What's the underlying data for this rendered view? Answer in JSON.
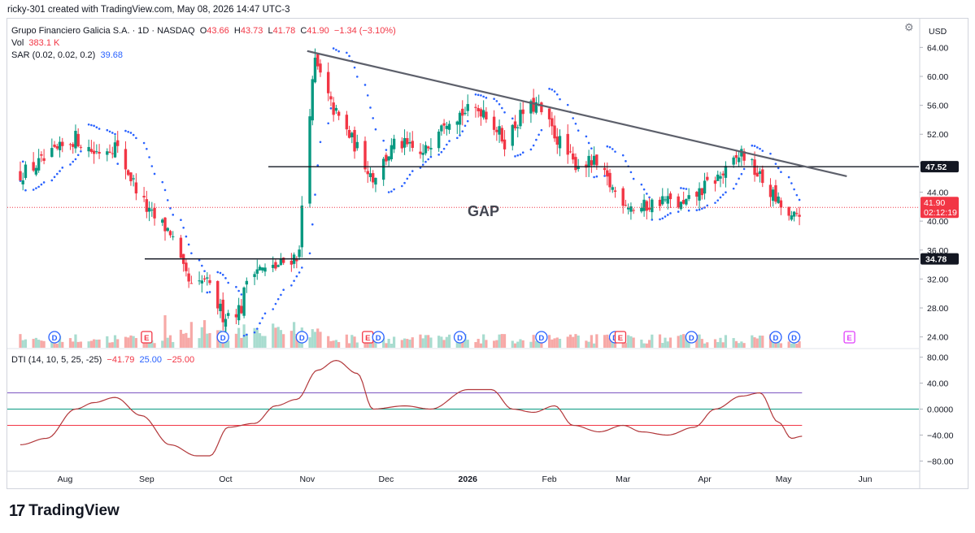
{
  "header": {
    "created_by": "ricky-301 created with TradingView.com, May 08, 2026 14:47 UTC-3"
  },
  "legend": {
    "symbol": "Grupo Financiero Galicia S.A. · 1D · NASDAQ",
    "o_label": "O",
    "o": "43.66",
    "h_label": "H",
    "h": "43.73",
    "l_label": "L",
    "l": "41.78",
    "c_label": "C",
    "c": "41.90",
    "change": "−1.34 (−3.10%)",
    "vol_label": "Vol",
    "vol": "383.1 K",
    "sar_label": "SAR (0.02, 0.02, 0.2)",
    "sar": "39.68",
    "dti_label": "DTI (14, 10, 5, 25, -25)",
    "dti": "−41.79",
    "dti_upper": "25.00",
    "dti_lower": "−25.00"
  },
  "branding": {
    "logo_word": "TradingView"
  },
  "colors": {
    "up": "#089981",
    "down": "#f23645",
    "sar": "#2962ff",
    "trendline": "#5d606b",
    "dti_line": "#b2383b",
    "dti_upper": "#7e57c2",
    "dti_lower": "#f23645",
    "dti_zero": "#089981"
  },
  "chart_data": [
    {
      "type": "candlestick",
      "title": "Grupo Financiero Galicia S.A. · 1D · NASDAQ",
      "currency": "USD",
      "x_ticks": [
        "Aug",
        "Sep",
        "Oct",
        "Nov",
        "Dec",
        "2026",
        "Feb",
        "Mar",
        "Apr",
        "May",
        "Jun"
      ],
      "y_ticks": [
        "24.00",
        "28.00",
        "32.00",
        "36.00",
        "40.00",
        "44.00",
        "48.00",
        "52.00",
        "56.00",
        "60.00",
        "64.00"
      ],
      "ylim": [
        22.5,
        65.5
      ],
      "close_anchors": {
        "dates": [
          "Jul 15",
          "Jul 25",
          "Aug 5",
          "Aug 12",
          "Aug 20",
          "Aug 26",
          "Sep 2",
          "Sep 10",
          "Sep 15",
          "Sep 19",
          "Sep 23",
          "Sep 30",
          "Oct 7",
          "Oct 10",
          "Oct 17",
          "Oct 24",
          "Oct 29",
          "Oct 31",
          "Nov 4",
          "Nov 10",
          "Nov 20",
          "Nov 26",
          "Dec 5",
          "Dec 15",
          "Dec 22",
          "Dec 30",
          "Jan 7",
          "Jan 15",
          "Jan 22",
          "Jan 27",
          "Feb 3",
          "Feb 10",
          "Feb 18",
          "Feb 26",
          "Mar 6",
          "Mar 16",
          "Mar 24",
          "Apr 2",
          "Apr 10",
          "Apr 15",
          "Apr 22",
          "Apr 28",
          "May 4",
          "May 8"
        ],
        "values": [
          46.5,
          48.5,
          51.5,
          49.5,
          50.5,
          46,
          41,
          38.5,
          33,
          30,
          32,
          27,
          28,
          34,
          33,
          34.5,
          35.5,
          49,
          62,
          56,
          50,
          46,
          51,
          49,
          54,
          55,
          55.5,
          51,
          55,
          56,
          52,
          48,
          48,
          44,
          41.5,
          43,
          42,
          45,
          47,
          49.5,
          46,
          43,
          40,
          41.9
        ]
      },
      "horizontal_levels": [
        {
          "value": 47.52,
          "label": "47.52"
        },
        {
          "value": 34.78,
          "label": "34.78"
        }
      ],
      "last_price_countdown": "02:12:19",
      "annotations": [
        "GAP"
      ],
      "trendline": {
        "from": {
          "date": "Nov 1",
          "value": 63.5
        },
        "to": {
          "date": "May 25",
          "value": 46.2
        }
      },
      "events": [
        {
          "date": "Jul 28",
          "kind": "D"
        },
        {
          "date": "Sep 1",
          "kind": "E"
        },
        {
          "date": "Sep 30",
          "kind": "D"
        },
        {
          "date": "Oct 30",
          "kind": "D"
        },
        {
          "date": "Nov 24",
          "kind": "E"
        },
        {
          "date": "Nov 28",
          "kind": "D"
        },
        {
          "date": "Dec 29",
          "kind": "D"
        },
        {
          "date": "Jan 29",
          "kind": "D"
        },
        {
          "date": "Feb 26",
          "kind": "D"
        },
        {
          "date": "Feb 28",
          "kind": "E"
        },
        {
          "date": "Mar 27",
          "kind": "D"
        },
        {
          "date": "Apr 28",
          "kind": "D"
        },
        {
          "date": "May 5",
          "kind": "D"
        },
        {
          "date": "May 26",
          "kind": "E"
        }
      ]
    },
    {
      "type": "line",
      "title": "DTI (14, 10, 5, 25, -25)",
      "y_ticks": [
        "80.00",
        "40.00",
        "0.0000",
        "−40.00",
        "−80.00"
      ],
      "ylim": [
        -92,
        92
      ],
      "levels": [
        25,
        0,
        -25
      ],
      "anchors": {
        "dates": [
          "Jul 15",
          "Jul 25",
          "Aug 5",
          "Aug 12",
          "Aug 20",
          "Aug 30",
          "Sep 10",
          "Sep 20",
          "Sep 25",
          "Oct 2",
          "Oct 12",
          "Oct 20",
          "Oct 28",
          "Nov 5",
          "Nov 12",
          "Nov 20",
          "Nov 26",
          "Dec 8",
          "Dec 18",
          "Jan 1",
          "Jan 10",
          "Jan 18",
          "Jan 26",
          "Feb 3",
          "Feb 10",
          "Feb 20",
          "Mar 1",
          "Mar 8",
          "Mar 18",
          "Mar 28",
          "Apr 5",
          "Apr 15",
          "Apr 22",
          "Apr 29",
          "May 4",
          "May 8"
        ],
        "values": [
          -55,
          -45,
          0,
          10,
          18,
          -10,
          -55,
          -72,
          -72,
          -28,
          -22,
          5,
          15,
          60,
          75,
          55,
          0,
          5,
          0,
          30,
          30,
          0,
          -5,
          5,
          -25,
          -35,
          -25,
          -35,
          -40,
          -28,
          0,
          20,
          25,
          -20,
          -45,
          -41.79
        ]
      }
    }
  ]
}
